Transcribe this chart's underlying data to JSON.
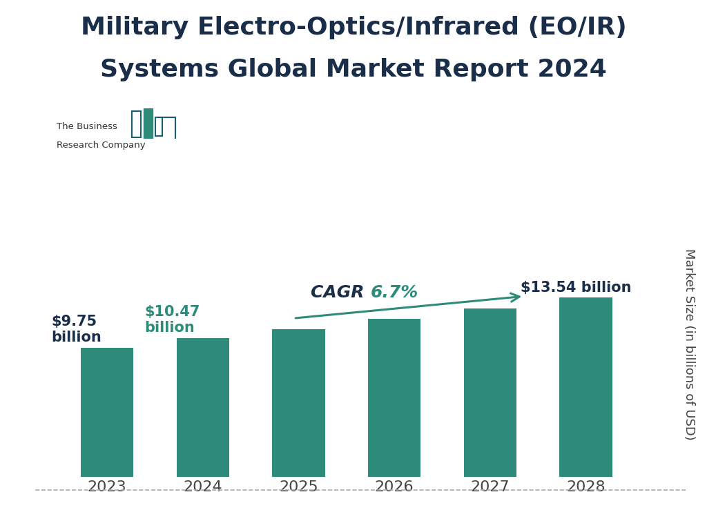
{
  "title_line1": "Military Electro-Optics/Infrared (EO/IR)",
  "title_line2": "Systems Global Market Report 2024",
  "years": [
    "2023",
    "2024",
    "2025",
    "2026",
    "2027",
    "2028"
  ],
  "values": [
    9.75,
    10.47,
    11.18,
    11.93,
    12.71,
    13.54
  ],
  "bar_color": "#2e8b7a",
  "title_color": "#1a2e4a",
  "annotation_color_dark": "#1a2e4a",
  "annotation_color_teal": "#2e8b7a",
  "ylabel": "Market Size (in billions of USD)",
  "ylabel_color": "#444444",
  "annotation_2023_line1": "$9.75",
  "annotation_2023_line2": "billion",
  "annotation_2024_line1": "$10.47",
  "annotation_2024_line2": "billion",
  "annotation_2028": "$13.54 billion",
  "cagr_text_bold": "CAGR ",
  "cagr_text_pct": "6.7%",
  "cagr_color": "#2e8b7a",
  "cagr_text_color": "#1a2e4a",
  "background_color": "#ffffff",
  "title_fontsize": 26,
  "tick_fontsize": 16,
  "annotation_fontsize": 15,
  "ylabel_fontsize": 13,
  "logo_text1": "The Business",
  "logo_text2": "Research Company",
  "logo_teal": "#2e8b7a",
  "logo_dark": "#1a5f6e",
  "bottom_line_color": "#aaaaaa",
  "ylim_max": 20.0,
  "bar_width": 0.55
}
